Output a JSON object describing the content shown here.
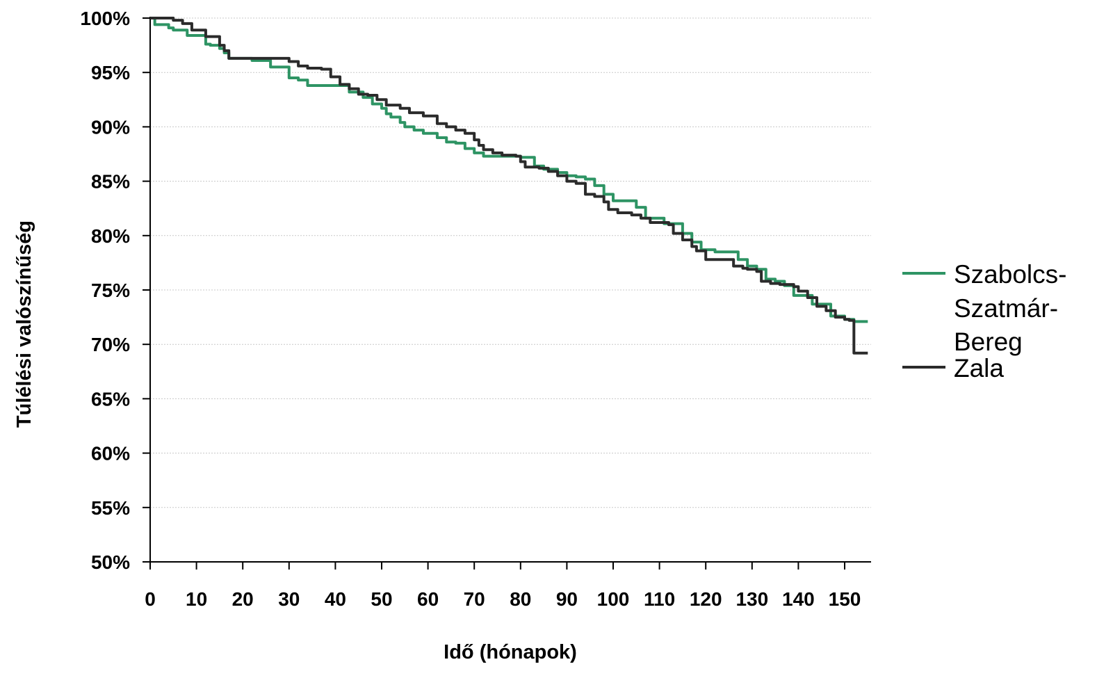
{
  "chart_data": {
    "type": "line",
    "xlabel": "Idő (hónapok)",
    "ylabel": "Túlélési valószínűség",
    "xlim": [
      0,
      155
    ],
    "ylim": [
      50,
      100
    ],
    "x_ticks": [
      "0",
      "10",
      "20",
      "30",
      "40",
      "50",
      "60",
      "70",
      "80",
      "90",
      "100",
      "110",
      "120",
      "130",
      "140",
      "150"
    ],
    "y_ticks": [
      "100%",
      "95%",
      "90%",
      "85%",
      "80%",
      "75%",
      "70%",
      "65%",
      "60%",
      "55%",
      "50%"
    ],
    "y_tick_values": [
      100,
      95,
      90,
      85,
      80,
      75,
      70,
      65,
      60,
      55,
      50
    ],
    "grid": true,
    "legend_position": "right",
    "series": [
      {
        "name": "Szabolcs-Szatmár-Bereg",
        "name_lines": [
          "Szabolcs-",
          "Szatmár-",
          "Bereg"
        ],
        "color": "#2e9464",
        "step": true,
        "x": [
          0,
          1,
          4,
          5,
          8,
          12,
          13,
          15,
          16,
          17,
          22,
          26,
          30,
          32,
          34,
          36,
          38,
          43,
          46,
          48,
          50,
          51,
          52,
          54,
          55,
          57,
          59,
          62,
          64,
          66,
          68,
          70,
          72,
          74,
          78,
          80,
          83,
          85,
          88,
          90,
          92,
          94,
          96,
          98,
          100,
          103,
          105,
          107,
          111,
          115,
          117,
          119,
          122,
          125,
          127,
          129,
          131,
          133,
          135,
          137,
          139,
          143,
          147,
          150,
          152,
          155
        ],
        "y": [
          100,
          99.4,
          99.1,
          98.9,
          98.4,
          97.6,
          97.5,
          97.2,
          96.8,
          96.3,
          96.1,
          95.5,
          94.5,
          94.3,
          93.8,
          93.8,
          93.8,
          93.2,
          92.7,
          92.1,
          91.7,
          91.2,
          90.9,
          90.4,
          90.0,
          89.7,
          89.4,
          89.0,
          88.6,
          88.5,
          88.0,
          87.6,
          87.3,
          87.3,
          87.3,
          87.2,
          86.4,
          86.1,
          85.8,
          85.5,
          85.4,
          85.2,
          84.6,
          83.8,
          83.2,
          83.2,
          82.6,
          81.6,
          81.1,
          80.2,
          79.4,
          78.7,
          78.5,
          78.5,
          77.8,
          77.2,
          76.9,
          76.0,
          75.8,
          75.4,
          74.5,
          73.7,
          72.6,
          72.3,
          72.1,
          72.1
        ]
      },
      {
        "name": "Zala",
        "name_lines": [
          "Zala"
        ],
        "color": "#2b2b2b",
        "step": true,
        "x": [
          0,
          3,
          5,
          7,
          9,
          12,
          15,
          16,
          17,
          20,
          24,
          28,
          30,
          32,
          34,
          37,
          39,
          41,
          43,
          45,
          47,
          49,
          51,
          54,
          56,
          59,
          62,
          64,
          66,
          68,
          70,
          71,
          72,
          74,
          76,
          79,
          80,
          81,
          84,
          86,
          88,
          90,
          92,
          94,
          96,
          98,
          99,
          101,
          104,
          106,
          108,
          112,
          113,
          115,
          117,
          118,
          120,
          122,
          124,
          126,
          128,
          129,
          131,
          132,
          134,
          136,
          138,
          139,
          140,
          142,
          144,
          146,
          148,
          150,
          151,
          152,
          155
        ],
        "y": [
          100,
          100,
          99.8,
          99.5,
          98.9,
          98.3,
          97.5,
          97.0,
          96.3,
          96.3,
          96.3,
          96.3,
          96.0,
          95.6,
          95.4,
          95.3,
          94.6,
          93.9,
          93.5,
          93.0,
          92.9,
          92.5,
          92.0,
          91.7,
          91.3,
          91.0,
          90.3,
          90.0,
          89.7,
          89.4,
          88.8,
          88.3,
          87.9,
          87.6,
          87.4,
          87.3,
          86.8,
          86.3,
          86.2,
          85.9,
          85.5,
          85.0,
          84.8,
          83.8,
          83.6,
          83.1,
          82.4,
          82.1,
          81.9,
          81.6,
          81.2,
          81.0,
          80.2,
          79.6,
          79.0,
          78.6,
          77.8,
          77.8,
          77.8,
          77.2,
          77.0,
          76.9,
          76.7,
          75.8,
          75.6,
          75.5,
          75.5,
          75.3,
          74.9,
          74.3,
          73.5,
          73.1,
          72.5,
          72.3,
          72.2,
          69.2,
          69.2
        ]
      }
    ]
  }
}
